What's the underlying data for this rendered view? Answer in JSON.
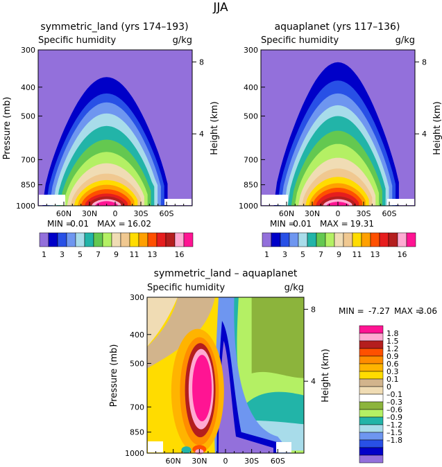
{
  "page_title": "JJA",
  "colors": {
    "land_scale": [
      "#9370db",
      "#0000c8",
      "#2850e6",
      "#6e96f0",
      "#a8dcea",
      "#22b4a8",
      "#64c850",
      "#b4f064",
      "#f0dcb4",
      "#f0c890",
      "#ffdc00",
      "#ffa000",
      "#ff5000",
      "#e61e1e",
      "#b41e1e",
      "#ffaad2",
      "#ff1493"
    ],
    "diff_scale": [
      "#9370db",
      "#0000c8",
      "#2850e6",
      "#6e96f0",
      "#a8dcea",
      "#22b4a8",
      "#b4f064",
      "#8cb43c",
      "#ffffff",
      "#f0dcb4",
      "#d2b48c",
      "#ffdc00",
      "#ffb400",
      "#ff8c00",
      "#ff5000",
      "#b41e1e",
      "#ffaad2",
      "#ff1493"
    ]
  },
  "chart_data": [
    {
      "type": "heatmap",
      "name": "symmetric_land",
      "title": "symmetric_land (yrs 174–193)",
      "subtitle_left": "Specific humidity",
      "subtitle_right": "g/kg",
      "ylabel": "Pressure (mb)",
      "ylabel_right": "Height (km)",
      "yticks": [
        "300",
        "400",
        "500",
        "700",
        "850",
        "1000"
      ],
      "ytick_values": [
        300,
        400,
        500,
        700,
        850,
        1000
      ],
      "yticks_right": [
        "8",
        "4"
      ],
      "xticks": [
        "60N",
        "30N",
        "0",
        "30S",
        "60S"
      ],
      "xlim": [
        90,
        -90
      ],
      "ylim": [
        1000,
        300
      ],
      "min_label": "MIN =",
      "min_value": "0.01",
      "max_label": "MAX =",
      "max_value": "16.02",
      "colorbar_labels": [
        "1",
        "3",
        "5",
        "7",
        "9",
        "11",
        "13",
        "16"
      ],
      "contour_tops_mb": [
        370,
        420,
        450,
        490,
        540,
        600,
        660,
        720,
        780,
        820,
        850,
        880,
        910,
        930,
        950,
        965
      ],
      "peak_lat": 10,
      "right_lobe_lat": -40
    },
    {
      "type": "heatmap",
      "name": "aquaplanet",
      "title": "aquaplanet (yrs 117–136)",
      "subtitle_left": "Specific humidity",
      "subtitle_right": "g/kg",
      "ylabel": "Pressure (mb)",
      "ylabel_right": "Height (km)",
      "yticks": [
        "300",
        "400",
        "500",
        "700",
        "850",
        "1000"
      ],
      "yticks_right": [
        "8",
        "4"
      ],
      "xticks": [
        "60N",
        "30N",
        "0",
        "30S",
        "60S"
      ],
      "xlim": [
        90,
        -90
      ],
      "ylim": [
        1000,
        300
      ],
      "min_label": "MIN =",
      "min_value": "0.01",
      "max_label": "MAX =",
      "max_value": "19.31",
      "colorbar_labels": [
        "1",
        "3",
        "5",
        "7",
        "9",
        "11",
        "13",
        "16"
      ],
      "contour_tops_mb": [
        330,
        380,
        420,
        460,
        500,
        560,
        620,
        690,
        750,
        800,
        840,
        870,
        900,
        930,
        950,
        970
      ],
      "peak_lat": 0,
      "right_lobe_lat": -30
    },
    {
      "type": "heatmap",
      "name": "difference",
      "title": "symmetric_land – aquaplanet",
      "subtitle_left": "Specific humidity",
      "subtitle_right": "g/kg",
      "ylabel": "Pressure (mb)",
      "ylabel_right": "Height (km)",
      "yticks": [
        "300",
        "400",
        "500",
        "700",
        "850",
        "1000"
      ],
      "yticks_right": [
        "8",
        "4"
      ],
      "xticks": [
        "60N",
        "30N",
        "0",
        "30S",
        "60S"
      ],
      "xlim": [
        90,
        -90
      ],
      "ylim": [
        1000,
        300
      ],
      "min_label": "MIN =",
      "min_value": "-7.27",
      "max_label": "MAX =",
      "max_value": "3.06",
      "colorbar_labels": [
        "1.8",
        "1.5",
        "1.2",
        "0.9",
        "0.6",
        "0.3",
        "0.1",
        "0",
        "–0.1",
        "–0.3",
        "–0.6",
        "–0.9",
        "–1.2",
        "–1.5",
        "–1.8"
      ],
      "positive_max_lat": 30,
      "negative_min_lat": 5
    }
  ]
}
